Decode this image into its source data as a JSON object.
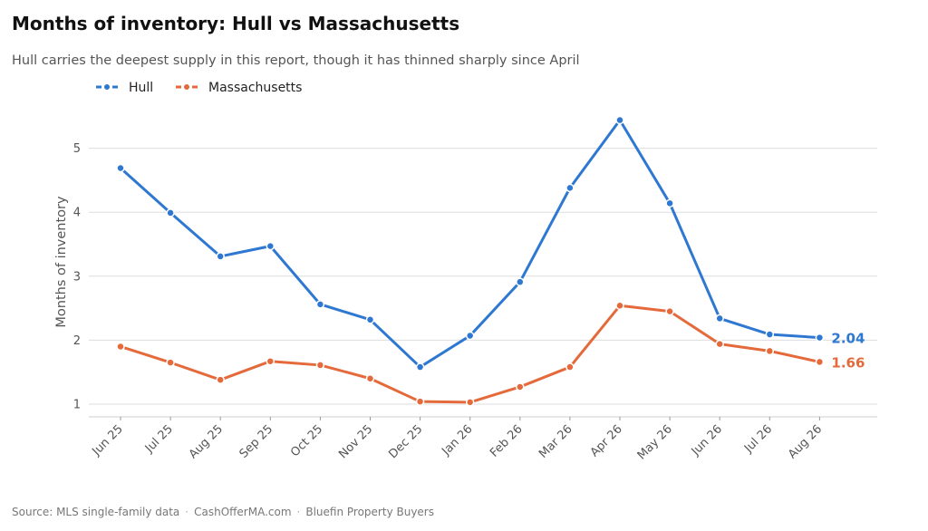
{
  "title": "Months of inventory: Hull vs Massachusetts",
  "subtitle": "Hull carries the deepest supply in this report, though it has thinned sharply since April",
  "source": {
    "parts": [
      "Source: MLS single-family data",
      "CashOfferMA.com",
      "Bluefin Property Buyers"
    ],
    "separator": "·"
  },
  "chart_data": {
    "type": "line",
    "title": "Months of inventory: Hull vs Massachusetts",
    "ylabel": "Months of inventory",
    "xlabel": "",
    "ylim": [
      0.8,
      5.8
    ],
    "yticks": [
      1,
      2,
      3,
      4,
      5
    ],
    "grid": "horizontal",
    "legend_position": "top-left",
    "categories": [
      "Jun 25",
      "Jul 25",
      "Aug 25",
      "Sep 25",
      "Oct 25",
      "Nov 25",
      "Dec 25",
      "Jan 26",
      "Feb 26",
      "Mar 26",
      "Apr 26",
      "May 26",
      "Jun 26",
      "Jul 26",
      "Aug 26"
    ],
    "series": [
      {
        "name": "Hull",
        "color": "#2e78d2",
        "values": [
          4.69,
          3.99,
          3.31,
          3.47,
          2.56,
          2.32,
          1.58,
          2.07,
          2.91,
          4.38,
          5.44,
          4.14,
          2.34,
          2.09,
          2.04
        ],
        "end_label": "2.04"
      },
      {
        "name": "Massachusetts",
        "color": "#e56a3b",
        "values": [
          1.9,
          1.65,
          1.38,
          1.67,
          1.61,
          1.4,
          1.04,
          1.03,
          1.27,
          1.58,
          2.54,
          2.45,
          1.94,
          1.83,
          1.66
        ],
        "end_label": "1.66"
      }
    ]
  }
}
